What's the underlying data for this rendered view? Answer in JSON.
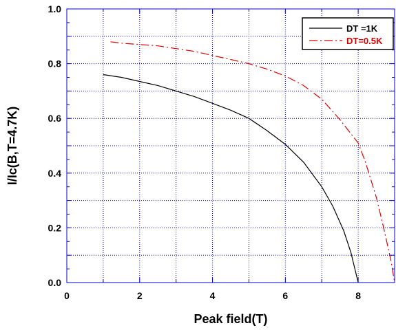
{
  "chart_data": {
    "type": "line",
    "title": "",
    "xlabel": "Peak field(T)",
    "ylabel": "I/Ic(B,T=4.7K)",
    "xlim": [
      0,
      9
    ],
    "ylim": [
      0,
      1
    ],
    "x_ticks": [
      "0",
      "2",
      "4",
      "6",
      "8"
    ],
    "y_ticks": [
      "0.0",
      "0.2",
      "0.4",
      "0.6",
      "0.8",
      "1.0"
    ],
    "grid": true,
    "legend_position": "top-right",
    "series": [
      {
        "name": "DT =1K",
        "color": "#000000",
        "style": "solid",
        "points": [
          [
            1.0,
            0.76
          ],
          [
            1.5,
            0.75
          ],
          [
            2.0,
            0.735
          ],
          [
            2.5,
            0.72
          ],
          [
            3.0,
            0.7
          ],
          [
            3.5,
            0.68
          ],
          [
            4.0,
            0.655
          ],
          [
            4.5,
            0.63
          ],
          [
            5.0,
            0.6
          ],
          [
            5.5,
            0.555
          ],
          [
            6.0,
            0.505
          ],
          [
            6.5,
            0.44
          ],
          [
            7.0,
            0.35
          ],
          [
            7.3,
            0.28
          ],
          [
            7.6,
            0.19
          ],
          [
            7.8,
            0.11
          ],
          [
            8.0,
            0.0
          ]
        ]
      },
      {
        "name": "DT=0.5K",
        "color": "#dd0000",
        "style": "dashdot",
        "points": [
          [
            1.2,
            0.88
          ],
          [
            1.5,
            0.875
          ],
          [
            2.0,
            0.87
          ],
          [
            2.5,
            0.865
          ],
          [
            3.0,
            0.855
          ],
          [
            3.5,
            0.845
          ],
          [
            4.0,
            0.83
          ],
          [
            4.5,
            0.815
          ],
          [
            5.0,
            0.8
          ],
          [
            5.5,
            0.78
          ],
          [
            6.0,
            0.755
          ],
          [
            6.5,
            0.72
          ],
          [
            7.0,
            0.67
          ],
          [
            7.5,
            0.595
          ],
          [
            8.0,
            0.51
          ],
          [
            8.2,
            0.44
          ],
          [
            8.5,
            0.31
          ],
          [
            8.7,
            0.2
          ],
          [
            8.9,
            0.08
          ],
          [
            9.0,
            0.0
          ]
        ]
      }
    ]
  }
}
